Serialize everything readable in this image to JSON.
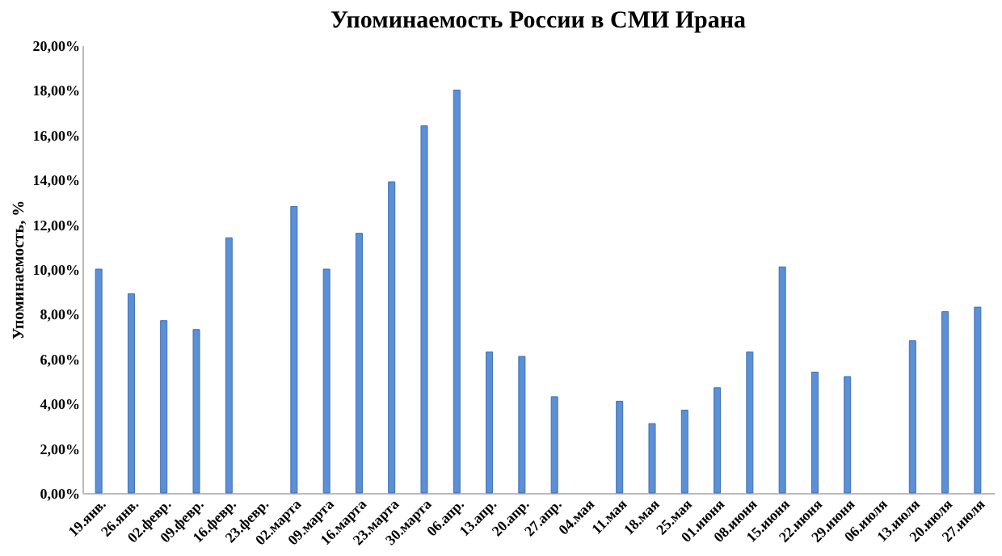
{
  "chart_data": {
    "type": "bar",
    "title": "Упоминаемость России в СМИ Ирана",
    "ylabel": "Упоминаемость, %",
    "categories": [
      "19.янв.",
      "26.янв.",
      "02.февр.",
      "09.февр.",
      "16.февр.",
      "23.февр.",
      "02.марта",
      "09.марта",
      "16.марта",
      "23.марта",
      "30.марта",
      "06.апр.",
      "13.апр.",
      "20.апр.",
      "27.апр.",
      "04.мая",
      "11.мая",
      "18.мая",
      "25.мая",
      "01.июня",
      "08.июня",
      "15.июня",
      "22.июня",
      "29.июня",
      "06.июля",
      "13.июля",
      "20.июля",
      "27.июля"
    ],
    "series": [
      {
        "color": "#5b8fd6",
        "values": [
          10.0,
          8.9,
          7.7,
          7.3,
          11.4,
          null,
          12.8,
          10.0,
          11.6,
          13.9,
          16.4,
          18.0,
          6.3,
          6.1,
          4.3,
          null,
          4.1,
          3.1,
          3.7,
          4.7,
          6.3,
          10.1,
          5.4,
          5.2,
          null,
          6.8,
          8.1,
          8.3
        ]
      }
    ],
    "ylim": [
      0,
      20
    ],
    "yticks": [
      {
        "value": 0,
        "label": "0,00%"
      },
      {
        "value": 2,
        "label": "2,00%"
      },
      {
        "value": 4,
        "label": "4,00%"
      },
      {
        "value": 6,
        "label": "6,00%"
      },
      {
        "value": 8,
        "label": "8,00%"
      },
      {
        "value": 10,
        "label": "10,00%"
      },
      {
        "value": 12,
        "label": "12,00%"
      },
      {
        "value": 14,
        "label": "14,00%"
      },
      {
        "value": 16,
        "label": "16,00%"
      },
      {
        "value": 18,
        "label": "18,00%"
      },
      {
        "value": 20,
        "label": "20,00%"
      }
    ],
    "grid": false,
    "legend": false
  }
}
